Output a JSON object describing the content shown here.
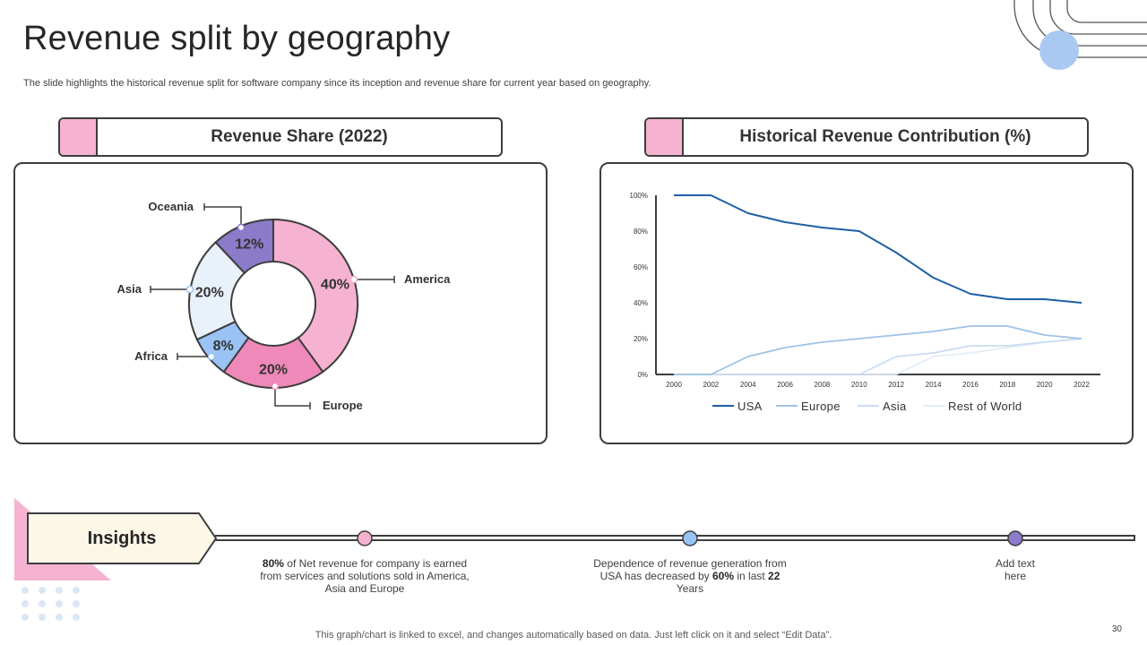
{
  "page": {
    "title": "Revenue split by geography",
    "subtitle": "The slide highlights the historical revenue split for software company since its inception and revenue share for current year based on geography.",
    "footer": "This graph/chart is linked to excel,  and changes automatically based on data. Just left click on it and select “Edit Data”.",
    "page_number": "30"
  },
  "colors": {
    "accent_pink": "#f5b3d1",
    "accent_blue": "#99c2f5",
    "accent_purple": "#8b7bc8",
    "usa": "#1f5fa3",
    "europe": "#9dc3e6",
    "asia": "#cfe0f3",
    "rest": "#e8f0fa"
  },
  "left_header": {
    "label": "Revenue Share (2022)"
  },
  "right_header": {
    "label": "Historical Revenue Contribution (%)"
  },
  "insights": {
    "label": "Insights",
    "items": [
      {
        "bold": "80%",
        "text": " of Net revenue for company is earned from services and solutions sold in America, Asia and Europe"
      },
      {
        "pre": "Dependence of revenue generation from USA has decreased by ",
        "bold": "60%",
        "mid": " in last ",
        "bold2": "22",
        "post": " Years"
      },
      {
        "text": "Add text here"
      }
    ]
  },
  "chart_data": [
    {
      "type": "pie",
      "title": "Revenue Share (2022)",
      "donut": true,
      "slices": [
        {
          "label": "America",
          "value": 40,
          "value_label": "40%",
          "color": "#f5b3d1"
        },
        {
          "label": "Europe",
          "value": 20,
          "value_label": "20%",
          "color": "#ef89b9"
        },
        {
          "label": "Africa",
          "value": 8,
          "value_label": "8%",
          "color": "#99c2f5"
        },
        {
          "label": "Asia",
          "value": 20,
          "value_label": "20%",
          "color": "#e9f1fb"
        },
        {
          "label": "Oceania",
          "value": 12,
          "value_label": "12%",
          "color": "#8b7bc8"
        }
      ]
    },
    {
      "type": "line",
      "title": "Historical Revenue Contribution (%)",
      "x": [
        2000,
        2002,
        2004,
        2006,
        2008,
        2010,
        2012,
        2014,
        2016,
        2018,
        2020,
        2022
      ],
      "ylim": [
        0,
        100
      ],
      "yticks": [
        "0%",
        "20%",
        "40%",
        "60%",
        "80%",
        "100%"
      ],
      "series": [
        {
          "name": "USA",
          "color": "#1f5fa3",
          "values": [
            100,
            100,
            90,
            85,
            82,
            80,
            68,
            54,
            45,
            42,
            42,
            40
          ]
        },
        {
          "name": "Europe",
          "color": "#9dc3e6",
          "values": [
            0,
            0,
            10,
            15,
            18,
            20,
            22,
            24,
            27,
            27,
            22,
            20
          ]
        },
        {
          "name": "Asia",
          "color": "#c9dcf2",
          "values": [
            0,
            0,
            0,
            0,
            0,
            0,
            10,
            12,
            16,
            16,
            18,
            20
          ]
        },
        {
          "name": "Rest of World",
          "color": "#e3ecf8",
          "values": [
            0,
            0,
            0,
            0,
            0,
            0,
            0,
            10,
            12,
            15,
            18,
            20
          ]
        }
      ]
    }
  ]
}
